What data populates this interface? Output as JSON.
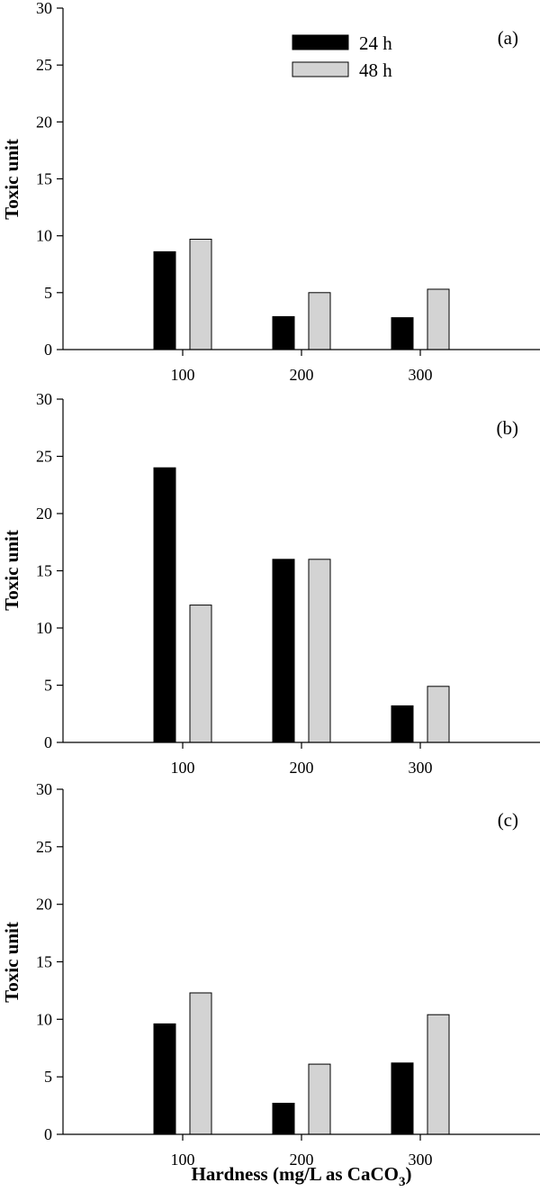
{
  "chart_data": [
    {
      "type": "bar",
      "panel_label": "(a)",
      "categories": [
        "100",
        "200",
        "300"
      ],
      "series": [
        {
          "name": "24 h",
          "values": [
            8.6,
            2.9,
            2.8
          ]
        },
        {
          "name": "48 h",
          "values": [
            9.7,
            5.0,
            5.3
          ]
        }
      ],
      "ylabel": "Toxic unit",
      "xlabel": "",
      "ylim": [
        0,
        30
      ],
      "yticks": [
        0,
        5,
        10,
        15,
        20,
        25,
        30
      ],
      "legend": "top-center"
    },
    {
      "type": "bar",
      "panel_label": "(b)",
      "categories": [
        "100",
        "200",
        "300"
      ],
      "series": [
        {
          "name": "24 h",
          "values": [
            24,
            16,
            3.2
          ]
        },
        {
          "name": "48 h",
          "values": [
            12,
            16,
            4.9
          ]
        }
      ],
      "ylabel": "Toxic unit",
      "xlabel": "",
      "ylim": [
        0,
        30
      ],
      "yticks": [
        0,
        5,
        10,
        15,
        20,
        25,
        30
      ]
    },
    {
      "type": "bar",
      "panel_label": "(c)",
      "categories": [
        "100",
        "200",
        "300"
      ],
      "series": [
        {
          "name": "24 h",
          "values": [
            9.6,
            2.7,
            6.2
          ]
        },
        {
          "name": "48 h",
          "values": [
            12.3,
            6.1,
            10.4
          ]
        }
      ],
      "ylabel": "Toxic unit",
      "xlabel": "Hardness (mg/L as CaCO3)",
      "xlabel_main": "Hardness (mg/L as CaCO",
      "xlabel_sub": "3",
      "xlabel_tail": ")",
      "ylim": [
        0,
        30
      ],
      "yticks": [
        0,
        5,
        10,
        15,
        20,
        25,
        30
      ]
    }
  ],
  "colors": {
    "series_24h": "#000000",
    "series_48h": "#d3d3d3",
    "axis": "#000000"
  }
}
